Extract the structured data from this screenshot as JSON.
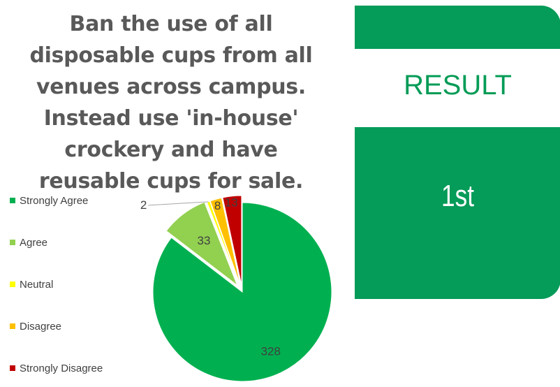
{
  "title": "Ban the use of all disposable cups from all venues across campus. Instead use 'in-house' crockery and have reusable cups for sale.",
  "result": {
    "label": "RESULT",
    "rank": "1st",
    "accent_color": "#059b58"
  },
  "chart_data": {
    "type": "pie",
    "title": "Ban the use of all disposable cups from all venues across campus. Instead use 'in-house' crockery and have reusable cups for sale.",
    "categories": [
      "Strongly Agree",
      "Agree",
      "Neutral",
      "Disagree",
      "Strongly Disagree"
    ],
    "values": [
      328,
      33,
      2,
      8,
      13
    ],
    "data_labels": [
      "328",
      "33",
      "2",
      "8",
      "13"
    ],
    "colors": [
      "#00b050",
      "#92d050",
      "#ffff00",
      "#ffc000",
      "#c00000"
    ],
    "exploded": true,
    "legend_position": "left"
  }
}
